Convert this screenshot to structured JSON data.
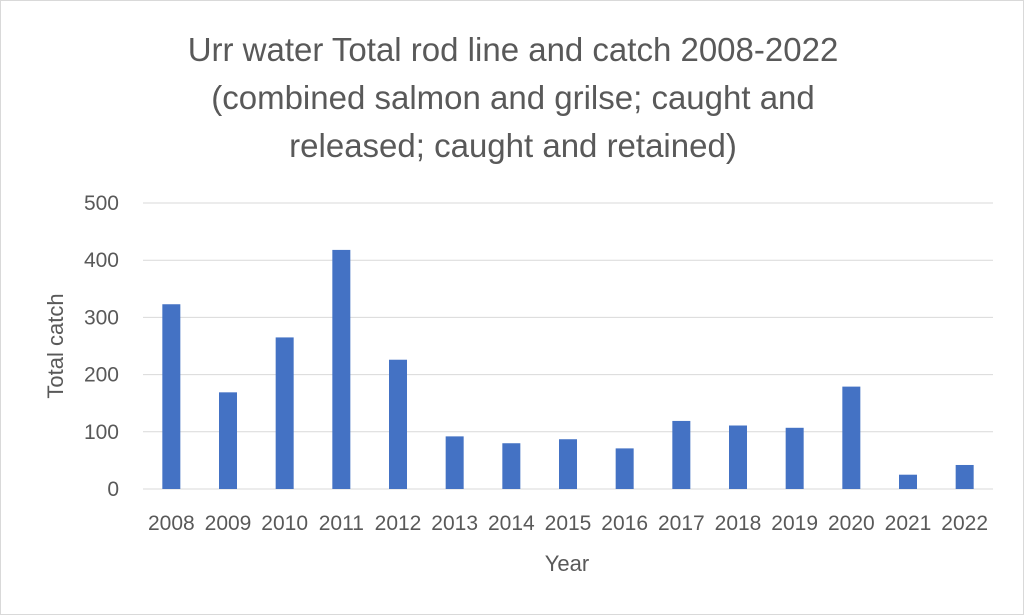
{
  "chart_data": {
    "type": "bar",
    "title": "Urr water Total rod line and catch 2008-2022 (combined salmon and grilse; caught and released; caught and retained)",
    "title_lines": [
      "Urr water Total rod line and catch 2008-2022",
      "(combined salmon and grilse; caught and",
      "released; caught and retained)"
    ],
    "xlabel": "Year",
    "ylabel": "Total catch",
    "categories": [
      "2008",
      "2009",
      "2010",
      "2011",
      "2012",
      "2013",
      "2014",
      "2015",
      "2016",
      "2017",
      "2018",
      "2019",
      "2020",
      "2021",
      "2022"
    ],
    "series": [
      {
        "values": [
          323,
          169,
          265,
          418,
          226,
          92,
          80,
          87,
          71,
          119,
          111,
          107,
          179,
          25,
          42
        ],
        "color": "#4472c4"
      }
    ],
    "ylim": [
      0,
      500
    ],
    "yticks": [
      "0",
      "100",
      "200",
      "300",
      "400",
      "500"
    ],
    "grid": true,
    "legend": "none",
    "gridline_color": "#d9d9d9",
    "text_color": "#595959"
  }
}
